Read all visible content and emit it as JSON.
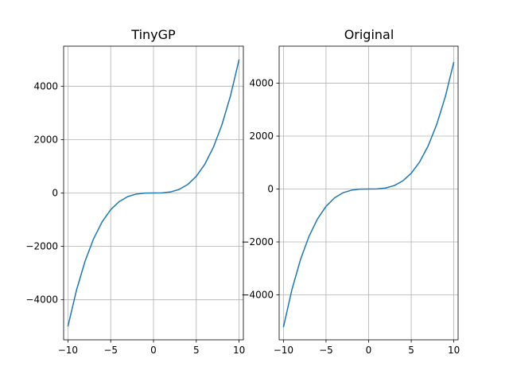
{
  "chart_data": [
    {
      "type": "line",
      "title": "TinyGP",
      "xlabel": "",
      "ylabel": "",
      "xlim": [
        -10.5,
        10.5
      ],
      "ylim": [
        -5500,
        5500
      ],
      "xticks": [
        -10,
        -5,
        0,
        5,
        10
      ],
      "xtick_labels": [
        "−10",
        "−5",
        "0",
        "5",
        "10"
      ],
      "yticks": [
        -4000,
        -2000,
        0,
        2000,
        4000
      ],
      "ytick_labels": [
        "−4000",
        "−2000",
        "0",
        "2000",
        "4000"
      ],
      "grid": true,
      "series": [
        {
          "color": "#1f77b4",
          "x": [
            -10,
            -9,
            -8,
            -7,
            -6,
            -5,
            -4,
            -3,
            -2,
            -1,
            0,
            1,
            2,
            3,
            4,
            5,
            6,
            7,
            8,
            9,
            10
          ],
          "y": [
            -5000,
            -3645,
            -2560,
            -1715,
            -1080,
            -625,
            -320,
            -135,
            -40,
            -5,
            0,
            5,
            40,
            135,
            320,
            625,
            1080,
            1715,
            2560,
            3645,
            5000
          ]
        }
      ]
    },
    {
      "type": "line",
      "title": "Original",
      "xlabel": "",
      "ylabel": "",
      "xlim": [
        -10.5,
        10.5
      ],
      "ylim": [
        -5700,
        5400
      ],
      "xticks": [
        -10,
        -5,
        0,
        5,
        10
      ],
      "xtick_labels": [
        "−10",
        "−5",
        "0",
        "5",
        "10"
      ],
      "yticks": [
        -4000,
        -2000,
        0,
        2000,
        4000
      ],
      "ytick_labels": [
        "−4000",
        "−2000",
        "0",
        "2000",
        "4000"
      ],
      "grid": true,
      "series": [
        {
          "color": "#1f77b4",
          "x": [
            -10,
            -9,
            -8,
            -7,
            -6,
            -5,
            -4,
            -3,
            -2,
            -1,
            0,
            1,
            2,
            3,
            4,
            5,
            6,
            7,
            8,
            9,
            10
          ],
          "y": [
            -5220,
            -3800,
            -2670,
            -1790,
            -1130,
            -655,
            -335,
            -140,
            -42,
            -5,
            0,
            5,
            38,
            130,
            305,
            595,
            1030,
            1640,
            2450,
            3490,
            4800
          ]
        }
      ]
    }
  ]
}
